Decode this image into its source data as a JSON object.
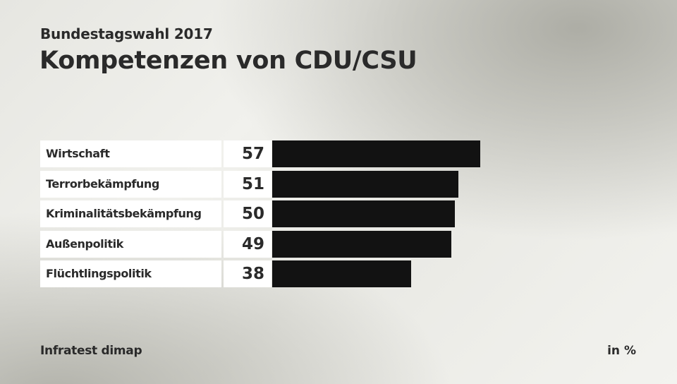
{
  "chart_data": {
    "type": "bar",
    "orientation": "horizontal",
    "subtitle": "Bundestagswahl 2017",
    "title": "Kompetenzen von CDU/CSU",
    "categories": [
      "Wirtschaft",
      "Terrorbekämpfung",
      "Kriminalitätsbekämpfung",
      "Außenpolitik",
      "Flüchtlingspolitik"
    ],
    "values": [
      57,
      51,
      50,
      49,
      38
    ],
    "value_labels": [
      "57",
      "51",
      "50",
      "49",
      "38"
    ],
    "xlim": [
      0,
      100
    ],
    "unit": "in %",
    "source": "Infratest dimap",
    "grid": false,
    "legend": "none",
    "bar_color": "#121212"
  }
}
